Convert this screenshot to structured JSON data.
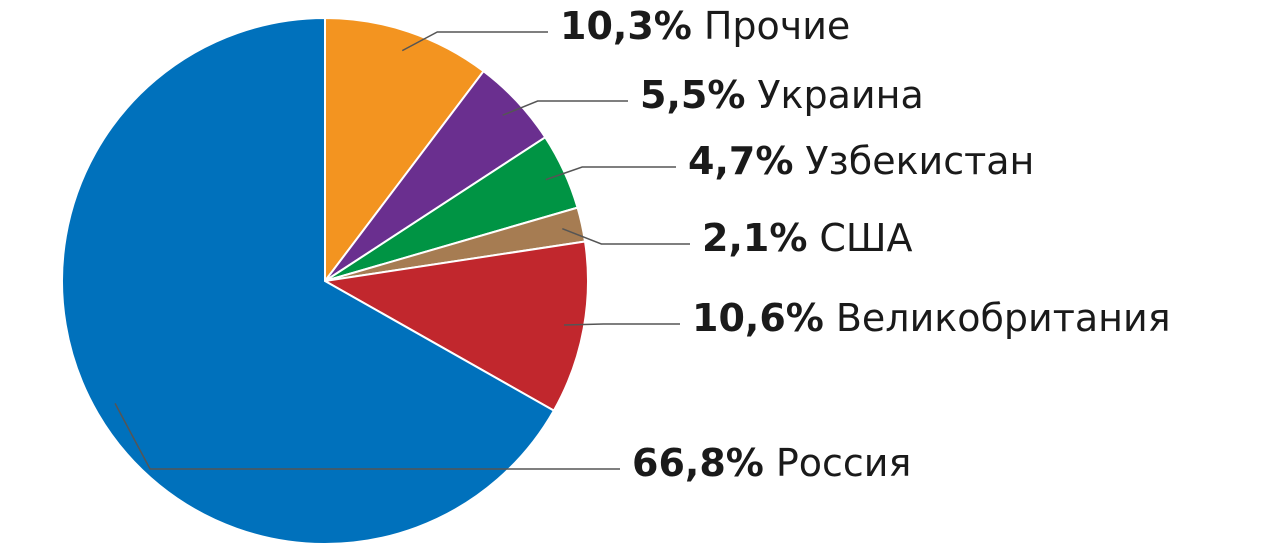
{
  "chart_data": {
    "type": "pie",
    "categories": [
      "Прочие",
      "Украина",
      "Узбекистан",
      "США",
      "Великобритания",
      "Россия"
    ],
    "values": [
      10.3,
      5.5,
      4.7,
      2.1,
      10.6,
      66.8
    ],
    "value_labels": [
      "10,3%",
      "5,5%",
      "4,7%",
      "2,1%",
      "10,6%",
      "66,8%"
    ],
    "colors": [
      "#f39420",
      "#6a2f8f",
      "#009444",
      "#a67c52",
      "#c1272d",
      "#0071bc"
    ]
  }
}
